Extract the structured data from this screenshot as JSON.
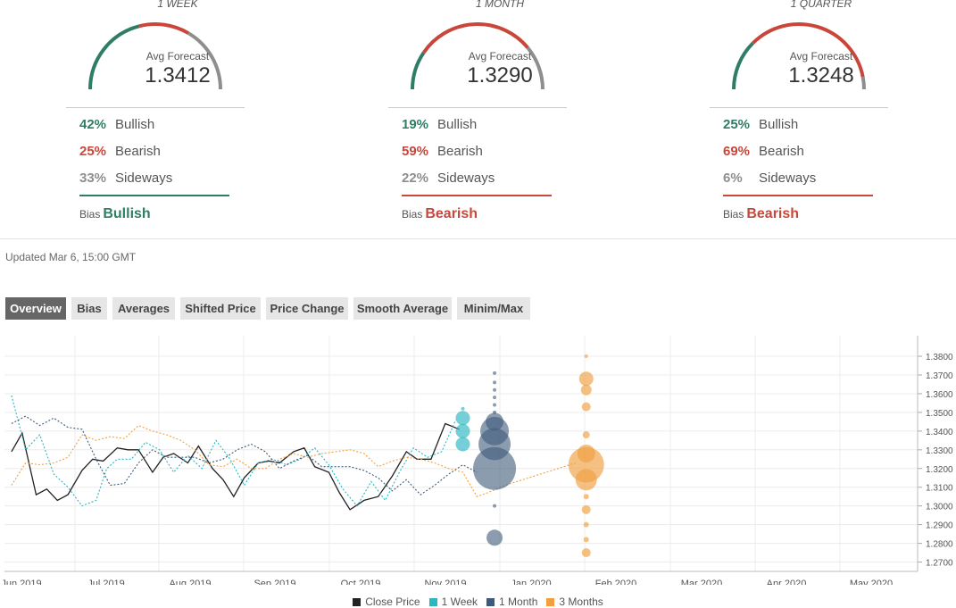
{
  "colors": {
    "bullish": "#2f7d66",
    "bearish": "#c9473a",
    "sideways": "#8e8e8e",
    "close": "#222222",
    "week": "#2ab7c0",
    "month": "#3d5a7a",
    "quarter": "#f0a040"
  },
  "forecasts": [
    {
      "period": "1 WEEK",
      "avg_label": "Avg Forecast",
      "avg_value": "1.3412",
      "bullish_pct": "42%",
      "bullish_label": "Bullish",
      "bullish_frac": 0.42,
      "bearish_pct": "25%",
      "bearish_label": "Bearish",
      "bearish_frac": 0.25,
      "sideways_pct": "33%",
      "sideways_label": "Sideways",
      "sideways_frac": 0.33,
      "bias_label": "Bias",
      "bias_value": "Bullish",
      "bias_type": "bullish"
    },
    {
      "period": "1 MONTH",
      "avg_label": "Avg Forecast",
      "avg_value": "1.3290",
      "bullish_pct": "19%",
      "bullish_label": "Bullish",
      "bullish_frac": 0.19,
      "bearish_pct": "59%",
      "bearish_label": "Bearish",
      "bearish_frac": 0.59,
      "sideways_pct": "22%",
      "sideways_label": "Sideways",
      "sideways_frac": 0.22,
      "bias_label": "Bias",
      "bias_value": "Bearish",
      "bias_type": "bearish"
    },
    {
      "period": "1 QUARTER",
      "avg_label": "Avg Forecast",
      "avg_value": "1.3248",
      "bullish_pct": "25%",
      "bullish_label": "Bullish",
      "bullish_frac": 0.25,
      "bearish_pct": "69%",
      "bearish_label": "Bearish",
      "bearish_frac": 0.69,
      "sideways_pct": "6%",
      "sideways_label": "Sideways",
      "sideways_frac": 0.06,
      "bias_label": "Bias",
      "bias_value": "Bearish",
      "bias_type": "bearish"
    }
  ],
  "updated": "Updated Mar 6, 15:00 GMT",
  "tabs": [
    {
      "label": "Overview",
      "active": true
    },
    {
      "label": "Bias",
      "active": false
    },
    {
      "label": "Averages",
      "active": false
    },
    {
      "label": "Shifted Price",
      "active": false
    },
    {
      "label": "Price Change",
      "active": false
    },
    {
      "label": "Smooth Average",
      "active": false
    },
    {
      "label": "Minim/Max",
      "active": false
    }
  ],
  "chart_data": {
    "type": "line",
    "x_ticks": [
      "Jun 2019",
      "Jul 2019",
      "Aug 2019",
      "Sep 2019",
      "Oct 2019",
      "Nov 2019",
      "Jan 2020",
      "Feb 2020",
      "Mar 2020",
      "Apr 2020",
      "May 2020"
    ],
    "y_ticks": [
      "1.2700",
      "1.2800",
      "1.2900",
      "1.3000",
      "1.3100",
      "1.3200",
      "1.3300",
      "1.3400",
      "1.3500",
      "1.3600",
      "1.3700",
      "1.3800"
    ],
    "ylim": [
      1.265,
      1.391
    ],
    "grid": true,
    "legend_position": "bottom",
    "series": [
      {
        "name": "Close Price",
        "key": "close",
        "style": "solid",
        "points": [
          [
            0,
            1.329
          ],
          [
            0.3,
            1.339
          ],
          [
            0.7,
            1.306
          ],
          [
            1,
            1.309
          ],
          [
            1.3,
            1.303
          ],
          [
            1.6,
            1.306
          ],
          [
            2,
            1.319
          ],
          [
            2.3,
            1.325
          ],
          [
            2.6,
            1.324
          ],
          [
            3,
            1.331
          ],
          [
            3.3,
            1.33
          ],
          [
            3.6,
            1.33
          ],
          [
            4,
            1.318
          ],
          [
            4.3,
            1.326
          ],
          [
            4.6,
            1.328
          ],
          [
            5,
            1.323
          ],
          [
            5.3,
            1.332
          ],
          [
            5.7,
            1.32
          ],
          [
            6,
            1.314
          ],
          [
            6.3,
            1.305
          ],
          [
            6.6,
            1.315
          ],
          [
            7,
            1.323
          ],
          [
            7.3,
            1.324
          ],
          [
            7.6,
            1.323
          ],
          [
            8,
            1.329
          ],
          [
            8.3,
            1.331
          ],
          [
            8.6,
            1.321
          ],
          [
            9,
            1.318
          ],
          [
            9.3,
            1.307
          ],
          [
            9.6,
            1.298
          ],
          [
            10,
            1.303
          ],
          [
            10.4,
            1.305
          ],
          [
            10.8,
            1.316
          ],
          [
            11.2,
            1.329
          ],
          [
            11.5,
            1.325
          ],
          [
            11.9,
            1.325
          ],
          [
            12.3,
            1.344
          ],
          [
            12.7,
            1.341
          ]
        ]
      },
      {
        "name": "1 Week",
        "key": "week",
        "style": "dashed",
        "points": [
          [
            0,
            1.359
          ],
          [
            0.4,
            1.33
          ],
          [
            0.8,
            1.338
          ],
          [
            1.2,
            1.317
          ],
          [
            1.6,
            1.31
          ],
          [
            2,
            1.3
          ],
          [
            2.4,
            1.303
          ],
          [
            2.7,
            1.32
          ],
          [
            3,
            1.325
          ],
          [
            3.4,
            1.325
          ],
          [
            3.8,
            1.334
          ],
          [
            4.2,
            1.33
          ],
          [
            4.6,
            1.318
          ],
          [
            5,
            1.327
          ],
          [
            5.4,
            1.32
          ],
          [
            5.8,
            1.335
          ],
          [
            6.2,
            1.325
          ],
          [
            6.6,
            1.311
          ],
          [
            7,
            1.323
          ],
          [
            7.4,
            1.325
          ],
          [
            7.8,
            1.322
          ],
          [
            8.2,
            1.325
          ],
          [
            8.6,
            1.331
          ],
          [
            9,
            1.322
          ],
          [
            9.4,
            1.309
          ],
          [
            9.8,
            1.3
          ],
          [
            10.2,
            1.313
          ],
          [
            10.6,
            1.303
          ],
          [
            11,
            1.318
          ],
          [
            11.4,
            1.331
          ],
          [
            11.8,
            1.326
          ],
          [
            12.2,
            1.329
          ],
          [
            12.6,
            1.346
          ]
        ]
      },
      {
        "name": "1 Month",
        "key": "month",
        "style": "dashed",
        "points": [
          [
            0,
            1.344
          ],
          [
            0.4,
            1.348
          ],
          [
            0.8,
            1.343
          ],
          [
            1.2,
            1.347
          ],
          [
            1.6,
            1.342
          ],
          [
            2,
            1.341
          ],
          [
            2.4,
            1.325
          ],
          [
            2.8,
            1.311
          ],
          [
            3.2,
            1.312
          ],
          [
            3.6,
            1.323
          ],
          [
            4,
            1.33
          ],
          [
            4.4,
            1.326
          ],
          [
            4.8,
            1.326
          ],
          [
            5.2,
            1.326
          ],
          [
            5.6,
            1.323
          ],
          [
            6,
            1.325
          ],
          [
            6.4,
            1.33
          ],
          [
            6.8,
            1.333
          ],
          [
            7.2,
            1.329
          ],
          [
            7.6,
            1.32
          ],
          [
            8,
            1.324
          ],
          [
            8.4,
            1.327
          ],
          [
            8.8,
            1.321
          ],
          [
            9.2,
            1.321
          ],
          [
            9.6,
            1.321
          ],
          [
            10,
            1.319
          ],
          [
            10.4,
            1.315
          ],
          [
            10.8,
            1.308
          ],
          [
            11.2,
            1.314
          ],
          [
            11.6,
            1.306
          ],
          [
            12,
            1.311
          ],
          [
            12.4,
            1.317
          ],
          [
            12.8,
            1.322
          ],
          [
            13.2,
            1.318
          ]
        ]
      },
      {
        "name": "3 Months",
        "key": "quarter",
        "style": "dashed",
        "points": [
          [
            0,
            1.311
          ],
          [
            0.4,
            1.323
          ],
          [
            0.8,
            1.322
          ],
          [
            1.2,
            1.323
          ],
          [
            1.6,
            1.326
          ],
          [
            2,
            1.338
          ],
          [
            2.4,
            1.335
          ],
          [
            2.8,
            1.337
          ],
          [
            3.2,
            1.336
          ],
          [
            3.6,
            1.343
          ],
          [
            4,
            1.34
          ],
          [
            4.4,
            1.338
          ],
          [
            4.8,
            1.335
          ],
          [
            5.2,
            1.33
          ],
          [
            5.6,
            1.322
          ],
          [
            6,
            1.321
          ],
          [
            6.4,
            1.325
          ],
          [
            6.8,
            1.32
          ],
          [
            7.2,
            1.32
          ],
          [
            7.6,
            1.325
          ],
          [
            8,
            1.328
          ],
          [
            8.4,
            1.326
          ],
          [
            8.8,
            1.328
          ],
          [
            9.2,
            1.329
          ],
          [
            9.6,
            1.33
          ],
          [
            10,
            1.328
          ],
          [
            10.4,
            1.321
          ],
          [
            10.8,
            1.324
          ],
          [
            11.2,
            1.326
          ],
          [
            11.6,
            1.325
          ],
          [
            12,
            1.323
          ],
          [
            12.4,
            1.32
          ],
          [
            12.8,
            1.318
          ],
          [
            13.2,
            1.305
          ],
          [
            13.5,
            1.307
          ],
          [
            14,
            1.311
          ],
          [
            14.5,
            1.314
          ],
          [
            15,
            1.317
          ],
          [
            15.5,
            1.32
          ],
          [
            16,
            1.323
          ]
        ]
      }
    ],
    "bubbles": [
      {
        "series": "week",
        "x": 12.8,
        "values": [
          1.352,
          1.347,
          1.34,
          1.333
        ],
        "sizes": [
          2,
          8,
          8,
          8
        ]
      },
      {
        "series": "month",
        "x": 13.7,
        "values": [
          1.371,
          1.366,
          1.362,
          1.358,
          1.354,
          1.35,
          1.345,
          1.34,
          1.333,
          1.32,
          1.3,
          1.283
        ],
        "sizes": [
          2,
          2,
          2,
          2,
          2,
          2,
          10,
          16,
          18,
          24,
          2,
          9
        ]
      },
      {
        "series": "quarter",
        "x": 16.3,
        "values": [
          1.38,
          1.368,
          1.362,
          1.353,
          1.338,
          1.328,
          1.322,
          1.314,
          1.305,
          1.298,
          1.29,
          1.282,
          1.275
        ],
        "sizes": [
          2,
          8,
          6,
          5,
          4,
          10,
          20,
          12,
          3,
          5,
          3,
          3,
          5
        ]
      }
    ]
  },
  "legend": [
    {
      "label": "Close Price",
      "key": "close"
    },
    {
      "label": "1 Week",
      "key": "week"
    },
    {
      "label": "1 Month",
      "key": "month"
    },
    {
      "label": "3 Months",
      "key": "quarter"
    }
  ]
}
